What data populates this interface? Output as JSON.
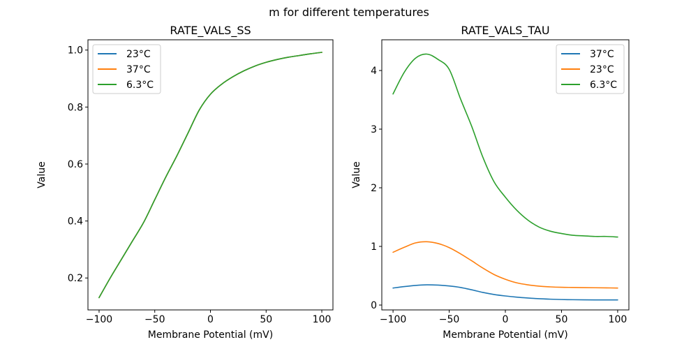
{
  "figure": {
    "suptitle": "m for different temperatures",
    "background_color": "#ffffff",
    "text_color": "#000000",
    "spine_color": "#000000",
    "legend_border_color": "#cccccc"
  },
  "chart_data": [
    {
      "type": "line",
      "title": "RATE_VALS_SS",
      "xlabel": "Membrane Potential (mV)",
      "ylabel": "Value",
      "xlim": [
        -110,
        110
      ],
      "ylim": [
        0.0879,
        1.0361
      ],
      "xticks": [
        -100,
        -50,
        0,
        50,
        100
      ],
      "yticks": [
        0.2,
        0.4,
        0.6,
        0.8,
        1.0
      ],
      "ytick_decimals": 1,
      "grid": false,
      "legend_position": "upper-left",
      "note": "All three temperature curves overlap exactly; the green 6.3°C line (drawn last) is the visible one.",
      "x": [
        -100,
        -90,
        -80,
        -70,
        -60,
        -50,
        -40,
        -30,
        -20,
        -10,
        0,
        10,
        20,
        30,
        40,
        50,
        60,
        70,
        80,
        90,
        100
      ],
      "series": [
        {
          "name": "23°C",
          "color": "#1f77b4",
          "values": [
            0.131,
            0.2,
            0.265,
            0.33,
            0.395,
            0.475,
            0.555,
            0.63,
            0.71,
            0.79,
            0.845,
            0.88,
            0.906,
            0.927,
            0.944,
            0.957,
            0.967,
            0.975,
            0.981,
            0.987,
            0.992
          ]
        },
        {
          "name": "37°C",
          "color": "#ff7f0e",
          "values": [
            0.131,
            0.2,
            0.265,
            0.33,
            0.395,
            0.475,
            0.555,
            0.63,
            0.71,
            0.79,
            0.845,
            0.88,
            0.906,
            0.927,
            0.944,
            0.957,
            0.967,
            0.975,
            0.981,
            0.987,
            0.992
          ]
        },
        {
          "name": "6.3°C",
          "color": "#2ca02c",
          "values": [
            0.131,
            0.2,
            0.265,
            0.33,
            0.395,
            0.475,
            0.555,
            0.63,
            0.71,
            0.79,
            0.845,
            0.88,
            0.906,
            0.927,
            0.944,
            0.957,
            0.967,
            0.975,
            0.981,
            0.987,
            0.992
          ]
        }
      ]
    },
    {
      "type": "line",
      "title": "RATE_VALS_TAU",
      "xlabel": "Membrane Potential (mV)",
      "ylabel": "Value",
      "xlim": [
        -110,
        110
      ],
      "ylim": [
        -0.083,
        4.524
      ],
      "xticks": [
        -100,
        -50,
        0,
        50,
        100
      ],
      "yticks": [
        0,
        1,
        2,
        3,
        4
      ],
      "ytick_decimals": 0,
      "grid": false,
      "legend_position": "upper-right",
      "note": "Tau peaks near -70 mV; 6.3°C peaks at ~4.28, 23°C at ~1.08, 37°C at ~0.35.",
      "x": [
        -100,
        -90,
        -80,
        -70,
        -60,
        -50,
        -40,
        -30,
        -20,
        -10,
        0,
        10,
        20,
        30,
        40,
        50,
        60,
        70,
        80,
        90,
        100
      ],
      "series": [
        {
          "name": "37°C",
          "color": "#1f77b4",
          "values": [
            0.29,
            0.315,
            0.335,
            0.345,
            0.34,
            0.325,
            0.3,
            0.26,
            0.215,
            0.18,
            0.155,
            0.135,
            0.12,
            0.108,
            0.1,
            0.094,
            0.091,
            0.089,
            0.088,
            0.088,
            0.088
          ]
        },
        {
          "name": "23°C",
          "color": "#ff7f0e",
          "values": [
            0.9,
            0.985,
            1.06,
            1.08,
            1.05,
            0.98,
            0.875,
            0.755,
            0.63,
            0.52,
            0.44,
            0.38,
            0.345,
            0.322,
            0.31,
            0.303,
            0.3,
            0.297,
            0.295,
            0.293,
            0.29
          ]
        },
        {
          "name": "6.3°C",
          "color": "#2ca02c",
          "values": [
            3.6,
            3.97,
            4.21,
            4.28,
            4.19,
            4.02,
            3.52,
            3.05,
            2.52,
            2.1,
            1.84,
            1.62,
            1.45,
            1.33,
            1.26,
            1.22,
            1.19,
            1.18,
            1.17,
            1.17,
            1.16
          ]
        }
      ]
    }
  ]
}
